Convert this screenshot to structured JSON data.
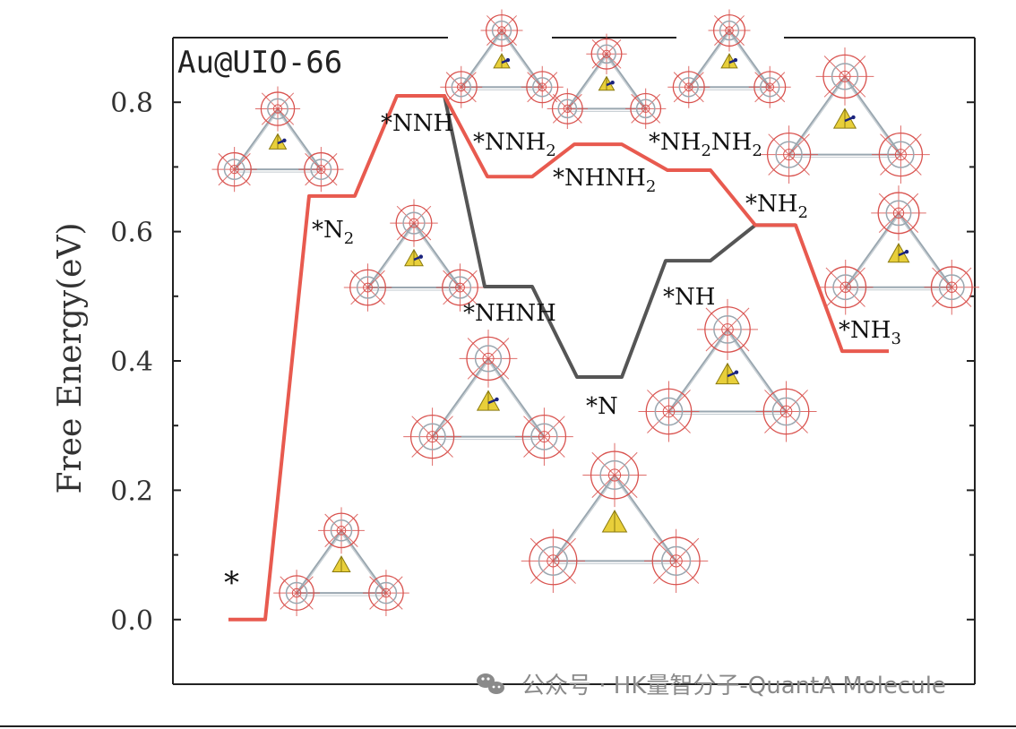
{
  "chart_data": {
    "type": "line",
    "title": "Au@UIO-66",
    "ylabel": "Free Energy(eV)",
    "xlabel": "",
    "ylim": [
      -0.1,
      0.9
    ],
    "yticks": [
      "0.0",
      "0.2",
      "0.4",
      "0.6",
      "0.8"
    ],
    "series": [
      {
        "color": "#e85a4f",
        "points": [
          {
            "label": "*",
            "y": 0.0
          },
          {
            "label": "*N2",
            "y": 0.655
          },
          {
            "label": "*NNH",
            "y": 0.81
          },
          {
            "label": "*NNH2",
            "y": 0.685
          },
          {
            "label": "*NHNH2",
            "y": 0.735
          },
          {
            "label": "*NH2NH2",
            "y": 0.695
          },
          {
            "label": "*NH2",
            "y": 0.61
          },
          {
            "label": "*NH3",
            "y": 0.415
          }
        ]
      },
      {
        "color": "#555555",
        "points": [
          {
            "label": "*NNH",
            "y": 0.81
          },
          {
            "label": "*NHNH",
            "y": 0.515
          },
          {
            "label": "*N",
            "y": 0.375
          },
          {
            "label": "*NH",
            "y": 0.555
          },
          {
            "label": "*NH2",
            "y": 0.61
          }
        ]
      }
    ],
    "state_labels": [
      {
        "main": "*",
        "sub": "",
        "tail": ""
      },
      {
        "main": "*N",
        "sub": "2",
        "tail": ""
      },
      {
        "main": "*NNH",
        "sub": "",
        "tail": ""
      },
      {
        "main": "*NNH",
        "sub": "2",
        "tail": ""
      },
      {
        "main": "*NHNH",
        "sub": "2",
        "tail": ""
      },
      {
        "main": "*NH",
        "sub": "2",
        "tail": "NH",
        "sub2": "2"
      },
      {
        "main": "*NH",
        "sub": "2",
        "tail": ""
      },
      {
        "main": "*NH",
        "sub": "3",
        "tail": ""
      },
      {
        "main": "*NHNH",
        "sub": "",
        "tail": ""
      },
      {
        "main": "*N",
        "sub": "",
        "tail": ""
      },
      {
        "main": "*NH",
        "sub": "",
        "tail": ""
      }
    ]
  },
  "watermark": "公众号 · HK量智分子-QuantA Molecule",
  "colors": {
    "distal_path": "#e85a4f",
    "alternating_path": "#555555",
    "gold_cluster": "#e8cf3a",
    "framework_ring": "#d9534f",
    "framework_linker": "#9aa7b0"
  },
  "icons": [
    "wechat-icon",
    "mof-structure-image",
    "au-cluster-icon"
  ]
}
